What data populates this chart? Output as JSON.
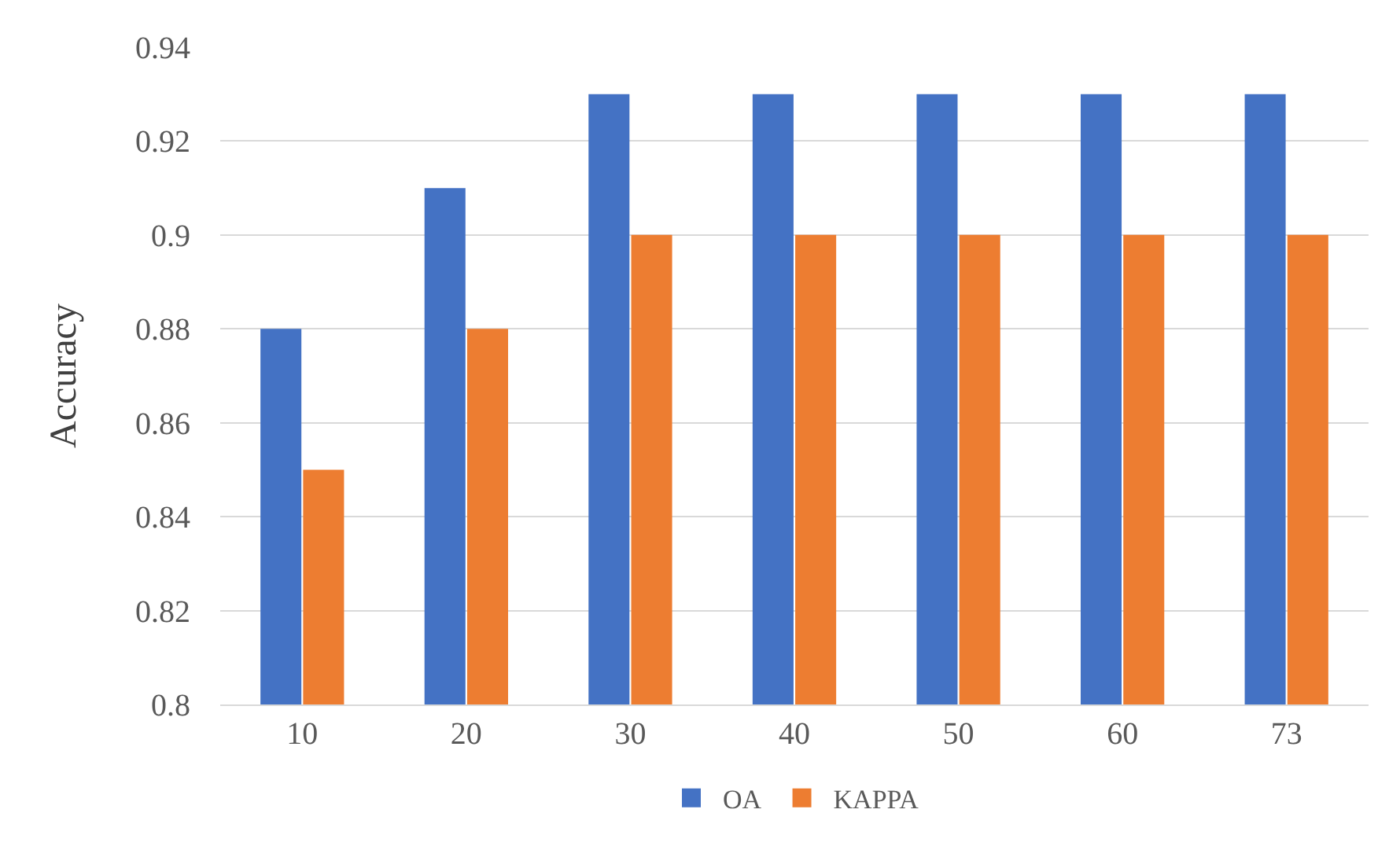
{
  "chart_data": {
    "type": "bar",
    "ylabel": "Accuracy",
    "categories": [
      "10",
      "20",
      "30",
      "40",
      "50",
      "60",
      "73"
    ],
    "series": [
      {
        "name": "OA",
        "color": "#4472c4",
        "values": [
          0.88,
          0.91,
          0.93,
          0.93,
          0.93,
          0.93,
          0.93
        ]
      },
      {
        "name": "KAPPA",
        "color": "#ed7d31",
        "values": [
          0.85,
          0.88,
          0.9,
          0.9,
          0.9,
          0.9,
          0.9
        ]
      }
    ],
    "ylim": [
      0.8,
      0.94
    ],
    "yticks": [
      0.8,
      0.82,
      0.84,
      0.86,
      0.88,
      0.9,
      0.92,
      0.94
    ],
    "grid": "y",
    "legend": "bottom"
  }
}
